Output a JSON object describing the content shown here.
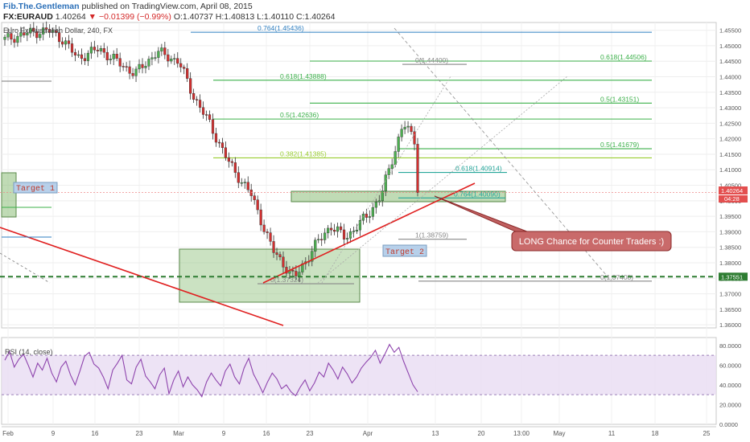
{
  "header": {
    "author": "Fib.The.Gentleman",
    "published": "published on TradingView.com, April 08, 2015",
    "symbol": "FX:EURAUD",
    "last": "1.40264",
    "change": "−0.01399 (−0.99%)",
    "ohlc": "O:1.40737 H:1.40813 L:1.40110 C:1.40264",
    "instrument": "Euro Fx/Australian Dollar, 240, FX"
  },
  "colors": {
    "up_candle": "#4caf50",
    "down_candle": "#d32f2f",
    "fib_blue": "#2f7fc1",
    "fib_green": "#3cb04a",
    "fib_yellowgreen": "#9acd32",
    "fib_teal": "#26a69a",
    "trend_red": "#e02020",
    "support_green": "#2e7d32",
    "rsi_line": "#8e44ad",
    "rsi_band": "#e8dcf3"
  },
  "chart_data": [
    {
      "type": "candlestick",
      "title": "Euro Fx/Australian Dollar, 240, FX",
      "y_ticks": [
        "1.45500",
        "1.45000",
        "1.44500",
        "1.44000",
        "1.43500",
        "1.43000",
        "1.42500",
        "1.42000",
        "1.41500",
        "1.41000",
        "1.40500",
        "1.40000",
        "1.39500",
        "1.39000",
        "1.38500",
        "1.38000",
        "1.37500",
        "1.37000",
        "1.36500",
        "1.36000"
      ],
      "ylim": [
        1.359,
        1.4575
      ],
      "x_ticks": [
        "Feb",
        "9",
        "16",
        "23",
        "Mar",
        "9",
        "16",
        "23",
        "Apr",
        "13",
        "20",
        "13:00",
        "May",
        "11",
        "18",
        "25"
      ],
      "price_path_x": [
        0,
        3,
        6,
        8,
        10,
        13,
        16,
        18,
        21,
        24,
        26,
        28,
        31,
        34,
        37,
        40,
        43,
        45,
        47,
        50,
        52,
        55,
        57
      ],
      "price_path_y": [
        1.452,
        1.454,
        1.455,
        1.452,
        1.446,
        1.449,
        1.444,
        1.441,
        1.448,
        1.445,
        1.434,
        1.426,
        1.412,
        1.402,
        1.384,
        1.375,
        1.386,
        1.392,
        1.388,
        1.395,
        1.402,
        1.425,
        1.418
      ],
      "fib_levels": [
        {
          "label": "0.764(1.45436)",
          "value": 1.45436,
          "color": "#2f7fc1"
        },
        {
          "label": "0.618(1.43888)",
          "value": 1.43888,
          "color": "#3cb04a"
        },
        {
          "label": "0.5(1.42636)",
          "value": 1.42636,
          "color": "#3cb04a"
        },
        {
          "label": "0.382(1.41385)",
          "value": 1.41385,
          "color": "#9acd32"
        },
        {
          "label": "0.618(1.44506)",
          "value": 1.44506,
          "color": "#3cb04a"
        },
        {
          "label": "0.5(1.43151)",
          "value": 1.43151,
          "color": "#3cb04a"
        },
        {
          "label": "0(1.44400)",
          "value": 1.444,
          "color": "#888888"
        },
        {
          "label": "0.5(1.41679)",
          "value": 1.41679,
          "color": "#3cb04a"
        },
        {
          "label": "0.618(1.40914)",
          "value": 1.40914,
          "color": "#26a69a"
        },
        {
          "label": "0.764(1.40090)",
          "value": 1.4009,
          "color": "#26a69a"
        },
        {
          "label": "1(1.38759)",
          "value": 1.38759,
          "color": "#888888"
        },
        {
          "label": "0(1.37324)",
          "value": 1.37324,
          "color": "#888888"
        },
        {
          "label": "0(1.37408)",
          "value": 1.37408,
          "color": "#888888"
        }
      ],
      "price_labels": [
        "1.40264",
        "1.37551",
        "04:28"
      ],
      "annotations": [
        "Target 1",
        "Target 2",
        "LONG Chance for Counter Traders :)"
      ]
    },
    {
      "type": "line",
      "title": "RSI (14, close)",
      "y_ticks": [
        "80.0000",
        "60.0000",
        "40.0000",
        "20.0000",
        "0.0000"
      ],
      "ylim": [
        0,
        88
      ],
      "band": [
        30,
        70
      ],
      "values": [
        65,
        74,
        58,
        66,
        71,
        60,
        48,
        62,
        55,
        67,
        52,
        43,
        58,
        64,
        50,
        40,
        54,
        69,
        73,
        61,
        57,
        48,
        36,
        55,
        62,
        70,
        45,
        41,
        58,
        66,
        49,
        43,
        36,
        50,
        57,
        31,
        45,
        54,
        38,
        48,
        40,
        35,
        28,
        43,
        52,
        45,
        39,
        54,
        61,
        48,
        41,
        57,
        67,
        51,
        42,
        32,
        43,
        52,
        46,
        36,
        40,
        33,
        29,
        38,
        45,
        34,
        42,
        53,
        48,
        62,
        55,
        46,
        58,
        51,
        42,
        48,
        57,
        63,
        68,
        75,
        62,
        71,
        81,
        73,
        78,
        64,
        52,
        40,
        33
      ]
    }
  ]
}
